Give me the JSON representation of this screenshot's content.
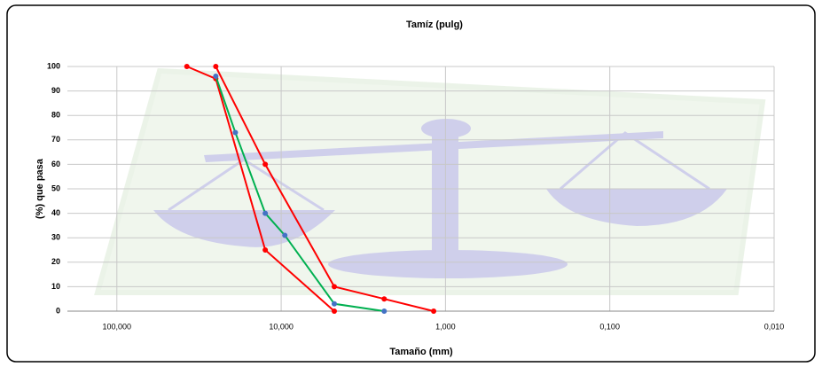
{
  "chart_data": {
    "type": "line",
    "title": "Tamíz (pulg)",
    "x_label": "Tamaño (mm)",
    "y_label": "(%) que pasa",
    "log_x": true,
    "grid": true,
    "xlim": [
      200,
      0.01
    ],
    "xticks": [
      {
        "value": 100,
        "label": "100,000"
      },
      {
        "value": 10,
        "label": "10,000"
      },
      {
        "value": 1,
        "label": "1,000"
      },
      {
        "value": 0.1,
        "label": "0,100"
      },
      {
        "value": 0.01,
        "label": "0,010"
      }
    ],
    "ylim": [
      0,
      100
    ],
    "yticks": [
      0,
      10,
      20,
      30,
      40,
      50,
      60,
      70,
      80,
      90,
      100
    ],
    "series": [
      {
        "color": "#ff0000",
        "marker_color": "#ff0000",
        "x": [
          25,
          12.5,
          4.75,
          2.36,
          1.18
        ],
        "values": [
          100,
          60,
          10,
          5,
          0
        ]
      },
      {
        "color": "#ff0000",
        "marker_color": "#ff0000",
        "x": [
          37.5,
          25,
          12.5,
          4.75
        ],
        "values": [
          100,
          95,
          25,
          0
        ]
      },
      {
        "color": "#00b050",
        "marker_color": "#4472c4",
        "x": [
          25,
          19,
          12.5,
          9.5,
          4.75,
          2.36
        ],
        "values": [
          96,
          73,
          40,
          31,
          3,
          0
        ]
      }
    ]
  }
}
